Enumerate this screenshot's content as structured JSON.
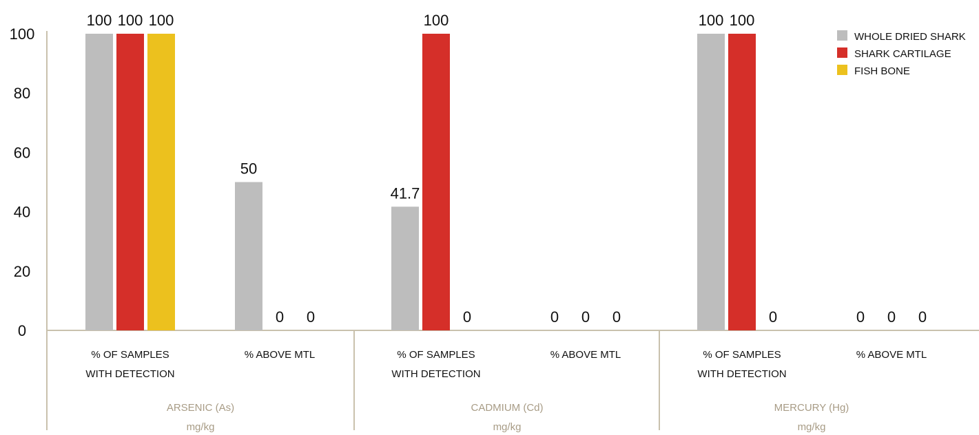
{
  "chart_data": {
    "type": "bar",
    "ylim": [
      0,
      100
    ],
    "yticks": [
      0,
      20,
      40,
      60,
      80,
      100
    ],
    "grid": false,
    "legend_position": "top-right",
    "series": [
      {
        "name": "WHOLE DRIED SHARK",
        "color": "#bdbdbd"
      },
      {
        "name": "SHARK CARTILAGE",
        "color": "#d52f29"
      },
      {
        "name": "FISH BONE",
        "color": "#ecc11e"
      }
    ],
    "groups": [
      {
        "label": "ARSENIC (As)",
        "unit": "mg/kg",
        "categories": [
          {
            "label_lines": [
              "% OF SAMPLES",
              "WITH DETECTION"
            ],
            "values": [
              100,
              100,
              100
            ]
          },
          {
            "label_lines": [
              "% ABOVE MTL"
            ],
            "values": [
              50,
              0,
              0
            ]
          }
        ]
      },
      {
        "label": "CADMIUM (Cd)",
        "unit": "mg/kg",
        "categories": [
          {
            "label_lines": [
              "% OF SAMPLES",
              "WITH DETECTION"
            ],
            "values": [
              41.7,
              100,
              0
            ]
          },
          {
            "label_lines": [
              "% ABOVE MTL"
            ],
            "values": [
              0,
              0,
              0
            ]
          }
        ]
      },
      {
        "label": "MERCURY (Hg)",
        "unit": "mg/kg",
        "categories": [
          {
            "label_lines": [
              "% OF SAMPLES",
              "WITH DETECTION"
            ],
            "values": [
              100,
              100,
              0
            ]
          },
          {
            "label_lines": [
              "% ABOVE MTL"
            ],
            "values": [
              0,
              0,
              0
            ]
          }
        ]
      }
    ]
  }
}
